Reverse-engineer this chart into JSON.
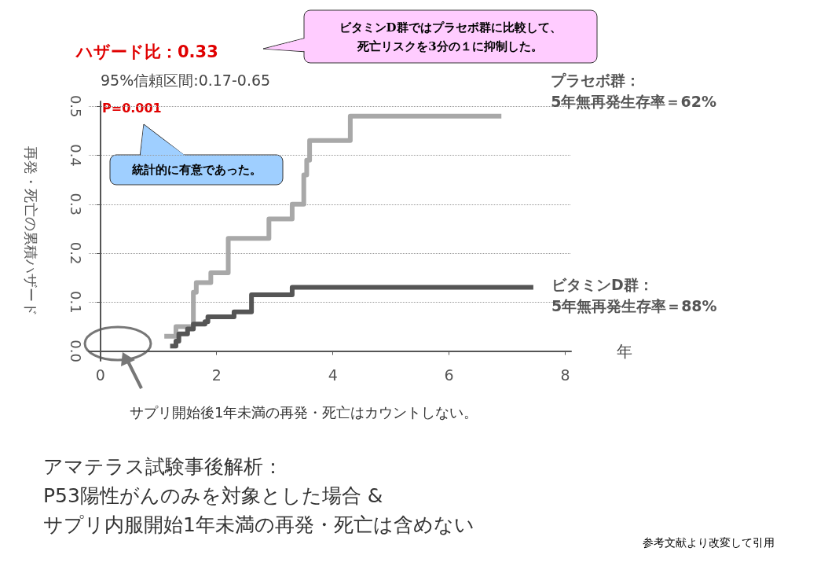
{
  "chart_data": {
    "type": "step",
    "title": "アマテラス試験事後解析：\nP53陽性がんのみを対象とした場合 &\nサプリ内服開始1年未満の再発・死亡は含めない",
    "ylabel": "再発・死亡の累積ハザード",
    "xlabel": "年",
    "series": [
      {
        "name": "プラセボ群：\n5年無再発生存率＝62%",
        "color": "#a8a8a8",
        "x": [
          1.1,
          1.3,
          1.6,
          1.65,
          1.9,
          2.2,
          2.9,
          3.3,
          3.5,
          3.55,
          3.6,
          4.3,
          6.9
        ],
        "values": [
          0.03,
          0.05,
          0.12,
          0.14,
          0.16,
          0.23,
          0.27,
          0.3,
          0.36,
          0.39,
          0.43,
          0.48,
          0.48
        ]
      },
      {
        "name": "ビタミンD群：\n5年無再発生存率＝88%",
        "color": "#555555",
        "x": [
          1.2,
          1.3,
          1.35,
          1.5,
          1.6,
          1.8,
          1.85,
          2.3,
          2.6,
          3.3,
          7.45
        ],
        "values": [
          0.01,
          0.02,
          0.035,
          0.045,
          0.055,
          0.06,
          0.07,
          0.08,
          0.115,
          0.13,
          0.13
        ]
      }
    ],
    "xlim": [
      -0.2,
      8.1
    ],
    "xticks": [
      0,
      2,
      4,
      6,
      8
    ],
    "ylim": [
      -0.02,
      0.51
    ],
    "yticks": [
      {
        "value": 0,
        "label": "0.0"
      },
      0.1,
      0.2,
      0.3,
      0.4,
      0.5
    ],
    "grid": "y",
    "legend": false,
    "line_style": "solid",
    "marker": "none",
    "annotations": [
      "ハザード比：0.33",
      "95%信頼区間:0.17-0.65",
      "P=0.001",
      "統計的に有意であった。",
      "ビタミンD群ではプラセボ群に比較して、",
      "死亡リスクを3分の１に抑制した。",
      "サプリ開始後1年未満の再発・死亡はカウントしない。",
      "参考文献より改変して引用"
    ]
  }
}
